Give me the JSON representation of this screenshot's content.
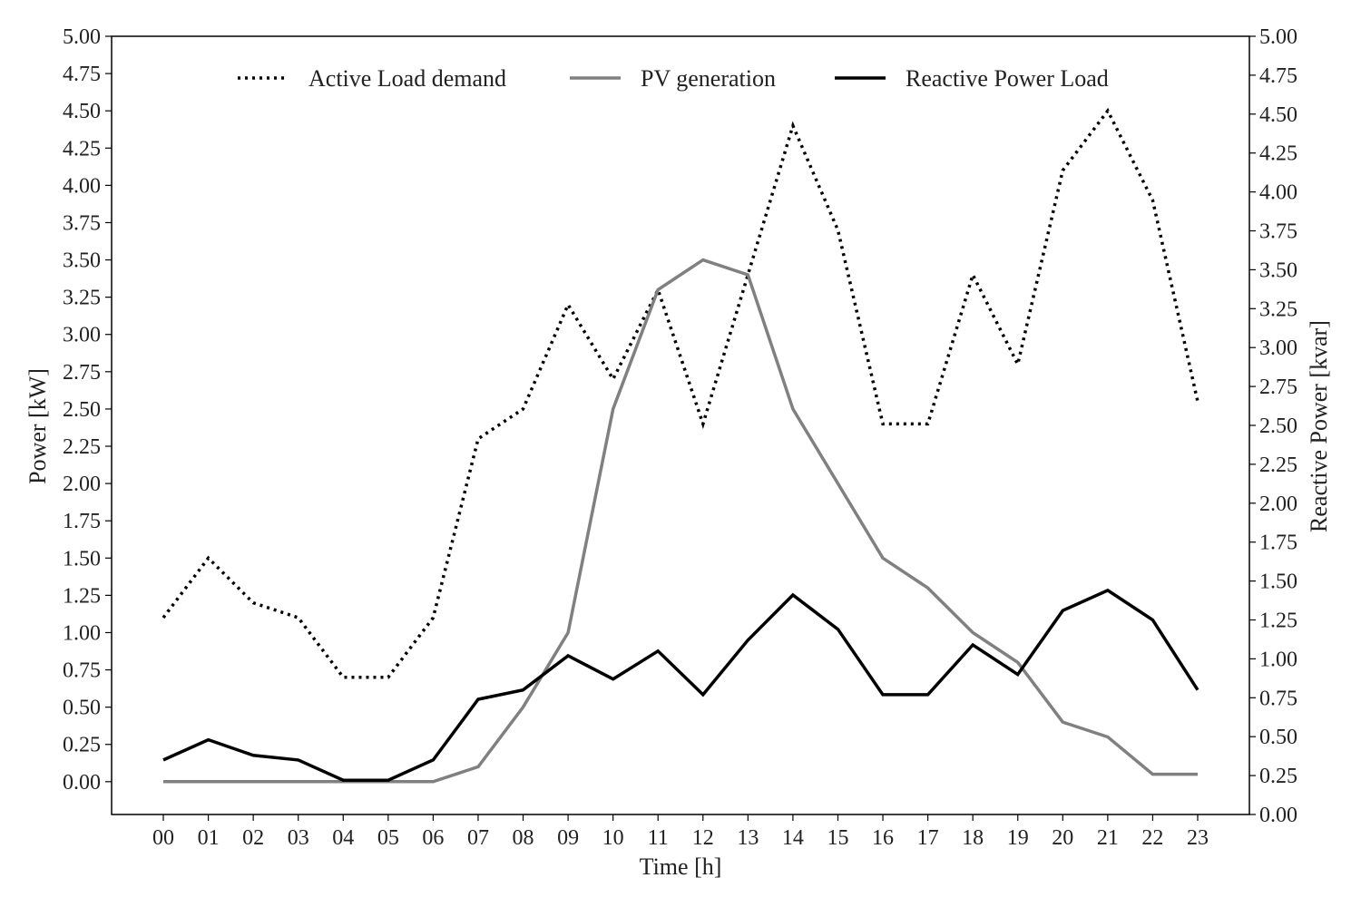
{
  "chart_data": {
    "type": "line",
    "xlabel": "Time [h]",
    "ylabel": "Power [kW]",
    "y2label": "Reactive Power [kvar]",
    "x": [
      "00",
      "01",
      "02",
      "03",
      "04",
      "05",
      "06",
      "07",
      "08",
      "09",
      "10",
      "11",
      "12",
      "13",
      "14",
      "15",
      "16",
      "17",
      "18",
      "19",
      "20",
      "21",
      "22",
      "23"
    ],
    "ylim": [
      -0.22,
      5.0
    ],
    "y2lim": [
      0.0,
      5.0
    ],
    "yticks": [
      "0.00",
      "0.25",
      "0.50",
      "0.75",
      "1.00",
      "1.25",
      "1.50",
      "1.75",
      "2.00",
      "2.25",
      "2.50",
      "2.75",
      "3.00",
      "3.25",
      "3.50",
      "3.75",
      "4.00",
      "4.25",
      "4.50",
      "4.75",
      "5.00"
    ],
    "y2ticks": [
      "0.00",
      "0.25",
      "0.50",
      "0.75",
      "1.00",
      "1.25",
      "1.50",
      "1.75",
      "2.00",
      "2.25",
      "2.50",
      "2.75",
      "3.00",
      "3.25",
      "3.50",
      "3.75",
      "4.00",
      "4.25",
      "4.50",
      "4.75",
      "5.00"
    ],
    "grid": false,
    "legend_position": "top-center",
    "series": [
      {
        "name": "Active Load demand",
        "axis": "left",
        "style": "dotted",
        "color": "#000000",
        "values": [
          1.1,
          1.5,
          1.2,
          1.1,
          0.7,
          0.7,
          1.1,
          2.3,
          2.5,
          3.2,
          2.7,
          3.3,
          2.4,
          3.4,
          4.4,
          3.7,
          2.4,
          2.4,
          3.4,
          2.8,
          4.1,
          4.5,
          3.9,
          2.55
        ]
      },
      {
        "name": "PV generation",
        "axis": "left",
        "style": "solid",
        "color": "#808080",
        "values": [
          0.0,
          0.0,
          0.0,
          0.0,
          0.0,
          0.0,
          0.0,
          0.1,
          0.5,
          1.0,
          2.5,
          3.3,
          3.5,
          3.4,
          2.5,
          2.0,
          1.5,
          1.3,
          1.0,
          0.8,
          0.4,
          0.3,
          0.05,
          0.05
        ]
      },
      {
        "name": "Reactive Power Load",
        "axis": "right",
        "style": "solid",
        "color": "#000000",
        "values": [
          0.35,
          0.48,
          0.38,
          0.35,
          0.22,
          0.22,
          0.35,
          0.74,
          0.8,
          1.02,
          0.87,
          1.05,
          0.77,
          1.12,
          1.41,
          1.19,
          0.77,
          0.77,
          1.09,
          0.9,
          1.31,
          1.44,
          1.25,
          0.8
        ]
      }
    ]
  }
}
